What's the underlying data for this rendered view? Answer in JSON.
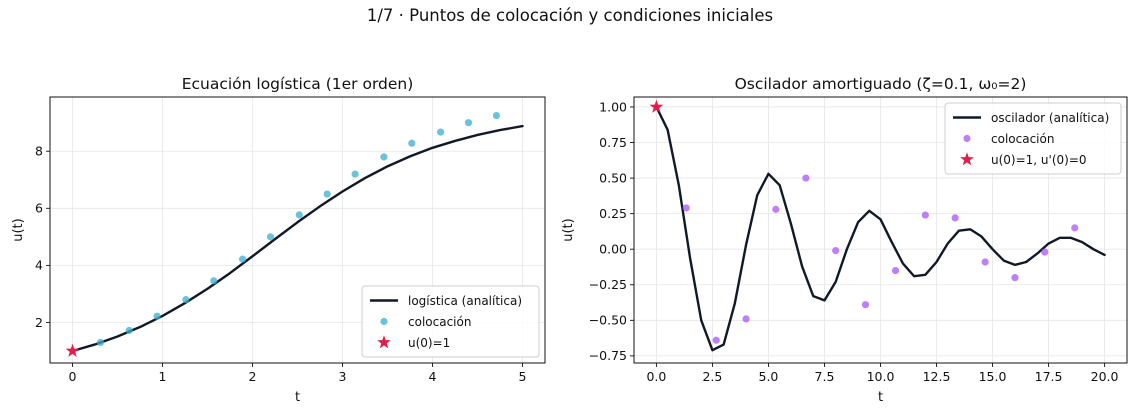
{
  "figure": {
    "suptitle": "1/7 · Puntos de colocación y condiciones iniciales"
  },
  "chart_data": [
    {
      "type": "line",
      "title": "Ecuación logística (1er orden)",
      "xlabel": "t",
      "ylabel": "u(t)",
      "xlim": [
        -0.25,
        5.25
      ],
      "ylim": [
        0.58,
        9.9
      ],
      "xticks": [
        0,
        1,
        2,
        3,
        4,
        5
      ],
      "xtick_labels": [
        "0",
        "1",
        "2",
        "3",
        "4",
        "5"
      ],
      "yticks": [
        2,
        4,
        6,
        8
      ],
      "ytick_labels": [
        "2",
        "4",
        "6",
        "8"
      ],
      "grid": true,
      "legend_position": "lower-right",
      "series": [
        {
          "name": "logística (analítica)",
          "kind": "line",
          "color": "#111827",
          "x": [
            0,
            0.25,
            0.5,
            0.75,
            1.0,
            1.25,
            1.5,
            1.75,
            2.0,
            2.25,
            2.5,
            2.75,
            3.0,
            3.25,
            3.5,
            3.75,
            4.0,
            4.25,
            4.5,
            4.75,
            5.0
          ],
          "y": [
            1.0,
            1.23,
            1.51,
            1.84,
            2.23,
            2.68,
            3.18,
            3.73,
            4.32,
            4.92,
            5.51,
            6.07,
            6.59,
            7.06,
            7.47,
            7.82,
            8.12,
            8.36,
            8.57,
            8.74,
            8.88
          ]
        },
        {
          "name": "colocación",
          "kind": "scatter",
          "color": "#3aaed0",
          "x": [
            0.31,
            0.63,
            0.94,
            1.26,
            1.57,
            1.89,
            2.2,
            2.52,
            2.83,
            3.14,
            3.46,
            3.77,
            4.09,
            4.4,
            4.71
          ],
          "y": [
            1.3,
            1.72,
            2.22,
            2.8,
            3.46,
            4.22,
            5.0,
            5.77,
            6.5,
            7.2,
            7.8,
            8.28,
            8.67,
            9.0,
            9.25
          ]
        },
        {
          "name": "u(0)=1",
          "kind": "star",
          "color": "#e11d48",
          "x": [
            0
          ],
          "y": [
            1.0
          ]
        }
      ]
    },
    {
      "type": "line",
      "title": "Oscilador amortiguado (ζ=0.1, ω₀=2)",
      "xlabel": "t",
      "ylabel": "u(t)",
      "xlim": [
        -1.0,
        21.0
      ],
      "ylim": [
        -0.8,
        1.07
      ],
      "xticks": [
        0,
        2.5,
        5,
        7.5,
        10,
        12.5,
        15,
        17.5,
        20
      ],
      "xtick_labels": [
        "0.0",
        "2.5",
        "5.0",
        "7.5",
        "10.0",
        "12.5",
        "15.0",
        "17.5",
        "20.0"
      ],
      "yticks": [
        -0.75,
        -0.5,
        -0.25,
        0,
        0.25,
        0.5,
        0.75,
        1.0
      ],
      "ytick_labels": [
        "−0.75",
        "−0.50",
        "−0.25",
        "0.00",
        "0.25",
        "0.50",
        "0.75",
        "1.00"
      ],
      "grid": true,
      "legend_position": "upper-right",
      "series": [
        {
          "name": "oscilador (analítica)",
          "kind": "line",
          "color": "#111827",
          "x": [
            0,
            0.5,
            1.0,
            1.5,
            2.0,
            2.5,
            3.0,
            3.5,
            4.0,
            4.5,
            5.0,
            5.5,
            6.0,
            6.5,
            7.0,
            7.5,
            8.0,
            8.5,
            9.0,
            9.5,
            10.0,
            10.5,
            11.0,
            11.5,
            12.0,
            12.5,
            13.0,
            13.5,
            14.0,
            14.5,
            15.0,
            15.5,
            16.0,
            16.5,
            17.0,
            17.5,
            18.0,
            18.5,
            19.0,
            19.5,
            20.0
          ],
          "y": [
            1.0,
            0.84,
            0.45,
            -0.06,
            -0.5,
            -0.71,
            -0.67,
            -0.38,
            0.03,
            0.38,
            0.53,
            0.45,
            0.18,
            -0.12,
            -0.33,
            -0.36,
            -0.23,
            0.0,
            0.19,
            0.27,
            0.21,
            0.05,
            -0.1,
            -0.19,
            -0.18,
            -0.09,
            0.04,
            0.13,
            0.14,
            0.09,
            0.0,
            -0.08,
            -0.11,
            -0.09,
            -0.03,
            0.04,
            0.08,
            0.08,
            0.05,
            0.0,
            -0.04
          ]
        },
        {
          "name": "colocación",
          "kind": "scatter",
          "color": "#a855f7",
          "x": [
            1.33,
            2.67,
            4.0,
            5.33,
            6.67,
            8.0,
            9.33,
            10.67,
            12.0,
            13.33,
            14.67,
            16.0,
            17.33,
            18.67
          ],
          "y": [
            0.29,
            -0.64,
            -0.49,
            0.28,
            0.5,
            -0.01,
            -0.39,
            -0.15,
            0.24,
            0.22,
            -0.09,
            -0.2,
            -0.02,
            0.15
          ]
        },
        {
          "name": "u(0)=1, u'(0)=0",
          "kind": "star",
          "color": "#e11d48",
          "x": [
            0
          ],
          "y": [
            1.0
          ]
        }
      ]
    }
  ]
}
